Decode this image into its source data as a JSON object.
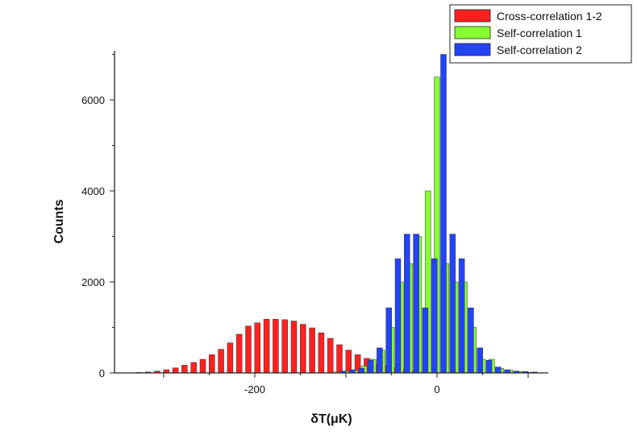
{
  "chart_data": {
    "type": "bar",
    "title": "",
    "xlabel": "δT(μK)",
    "ylabel": "Counts",
    "xlim": [
      -350,
      120
    ],
    "ylim": [
      0,
      7000
    ],
    "bin_width": 10,
    "grid": false,
    "legend_position": "top-right",
    "x_ticks": [
      {
        "value": -200,
        "label": "-200"
      },
      {
        "value": 0,
        "label": "0"
      }
    ],
    "y_ticks": [
      {
        "value": 0,
        "label": "0"
      },
      {
        "value": 2000,
        "label": "2000"
      },
      {
        "value": 4000,
        "label": "4000"
      },
      {
        "value": 6000,
        "label": "6000"
      }
    ],
    "series": [
      {
        "name": "Cross-correlation 1-2",
        "color": "#ff2020",
        "x": [
          -320,
          -310,
          -300,
          -290,
          -280,
          -270,
          -260,
          -250,
          -240,
          -230,
          -220,
          -210,
          -200,
          -190,
          -180,
          -170,
          -160,
          -150,
          -140,
          -130,
          -120,
          -110,
          -100,
          -90,
          -80,
          -70,
          -60,
          -50,
          -40,
          -30,
          -20,
          -10,
          0
        ],
        "values": [
          10,
          20,
          40,
          70,
          110,
          170,
          230,
          300,
          400,
          520,
          660,
          850,
          1030,
          1100,
          1180,
          1180,
          1170,
          1140,
          1070,
          990,
          880,
          760,
          620,
          500,
          400,
          320,
          210,
          160,
          120,
          80,
          50,
          20,
          10
        ]
      },
      {
        "name": "Self-correlation 1",
        "color": "#88ff33",
        "x": [
          -110,
          -100,
          -90,
          -80,
          -70,
          -60,
          -50,
          -40,
          -30,
          -20,
          -10,
          0,
          10,
          20,
          30,
          40,
          50,
          60,
          70,
          80,
          90,
          100
        ],
        "values": [
          20,
          40,
          60,
          150,
          300,
          500,
          1000,
          2000,
          2400,
          3000,
          4000,
          6500,
          2400,
          2000,
          2000,
          1000,
          300,
          300,
          100,
          60,
          30,
          10
        ]
      },
      {
        "name": "Self-correlation 2",
        "color": "#2244ff",
        "x": [
          -110,
          -100,
          -90,
          -80,
          -70,
          -60,
          -50,
          -40,
          -30,
          -20,
          -10,
          0,
          10,
          20,
          30,
          40,
          50,
          60,
          70,
          80,
          90,
          100
        ],
        "values": [
          40,
          70,
          100,
          280,
          550,
          1430,
          2510,
          3050,
          3050,
          1430,
          2510,
          7000,
          3050,
          2510,
          1430,
          550,
          280,
          130,
          70,
          40,
          30,
          20
        ]
      }
    ]
  }
}
